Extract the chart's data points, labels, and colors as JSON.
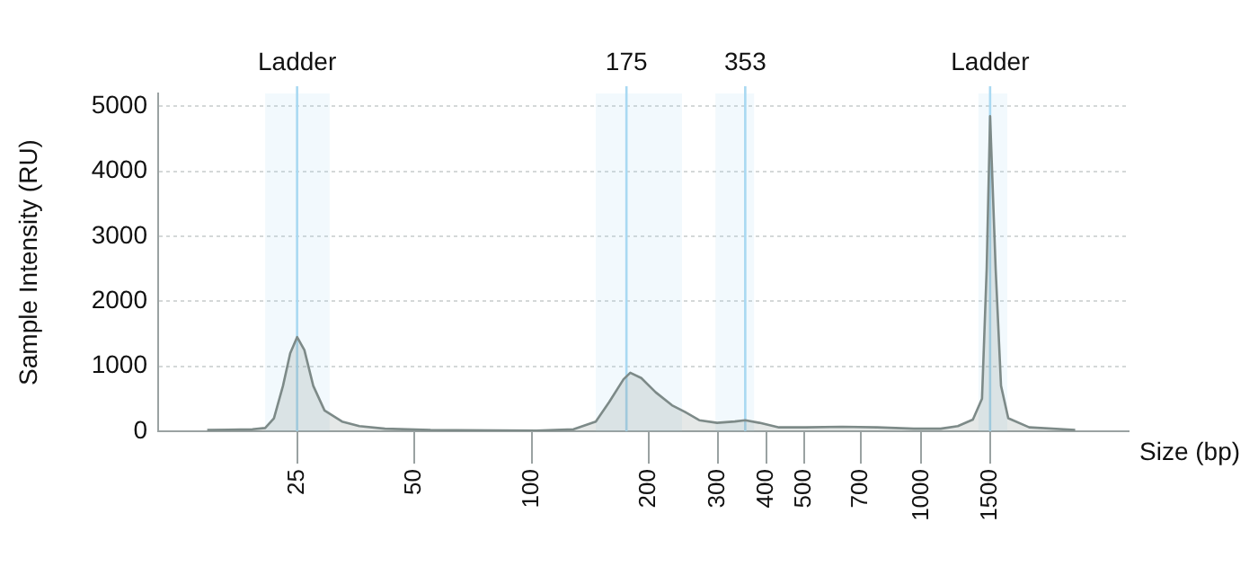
{
  "chart_data": {
    "type": "area",
    "xlabel": "Size (bp)",
    "ylabel": "Sample Intensity (RU)",
    "log": "x",
    "xlim": [
      11,
      3400
    ],
    "ylim": [
      0,
      5200
    ],
    "xticks": [
      25,
      50,
      100,
      200,
      300,
      400,
      500,
      700,
      1000,
      1500
    ],
    "yticks": [
      0,
      1000,
      2000,
      3000,
      4000,
      5000
    ],
    "grid": "y",
    "legend": false,
    "marker": "none",
    "line_style": "solid",
    "x": [
      14.7,
      19.2,
      20.7,
      21.8,
      23.0,
      24.0,
      25,
      26.1,
      27.5,
      29.4,
      32.6,
      36.1,
      42,
      55,
      103,
      128,
      146,
      158,
      172,
      179,
      191,
      208,
      229,
      247,
      269,
      299,
      332,
      353,
      384,
      431,
      505,
      625,
      770,
      955,
      1120,
      1240,
      1355,
      1430,
      1470,
      1500,
      1550,
      1600,
      1670,
      1890,
      2480
    ],
    "series": [
      {
        "color": "#7d8a88",
        "values": [
          20,
          30,
          50,
          200,
          700,
          1200,
          1450,
          1250,
          700,
          320,
          150,
          80,
          40,
          20,
          10,
          30,
          150,
          450,
          800,
          900,
          820,
          600,
          400,
          300,
          170,
          130,
          150,
          170,
          130,
          60,
          60,
          70,
          60,
          40,
          40,
          80,
          180,
          500,
          2500,
          4850,
          2500,
          700,
          200,
          60,
          20
        ]
      }
    ],
    "ref_lines": [
      {
        "axis": "x",
        "value": 25,
        "label": "Ladder",
        "color": "#a9d9f2"
      },
      {
        "axis": "x",
        "value": 175,
        "label": "175",
        "color": "#a9d9f2"
      },
      {
        "axis": "x",
        "value": 353,
        "label": "353",
        "color": "#a9d9f2"
      },
      {
        "axis": "x",
        "value": 1500,
        "label": "Ladder",
        "color": "#a9d9f2"
      }
    ],
    "bands": [
      {
        "axis": "x",
        "from": 20.7,
        "to": 30.3,
        "color": "#a9d9f2"
      },
      {
        "axis": "x",
        "from": 146,
        "to": 243,
        "color": "#a9d9f2"
      },
      {
        "axis": "x",
        "from": 296,
        "to": 372,
        "color": "#a9d9f2"
      },
      {
        "axis": "x",
        "from": 1400,
        "to": 1660,
        "color": "#a9d9f2"
      }
    ]
  }
}
